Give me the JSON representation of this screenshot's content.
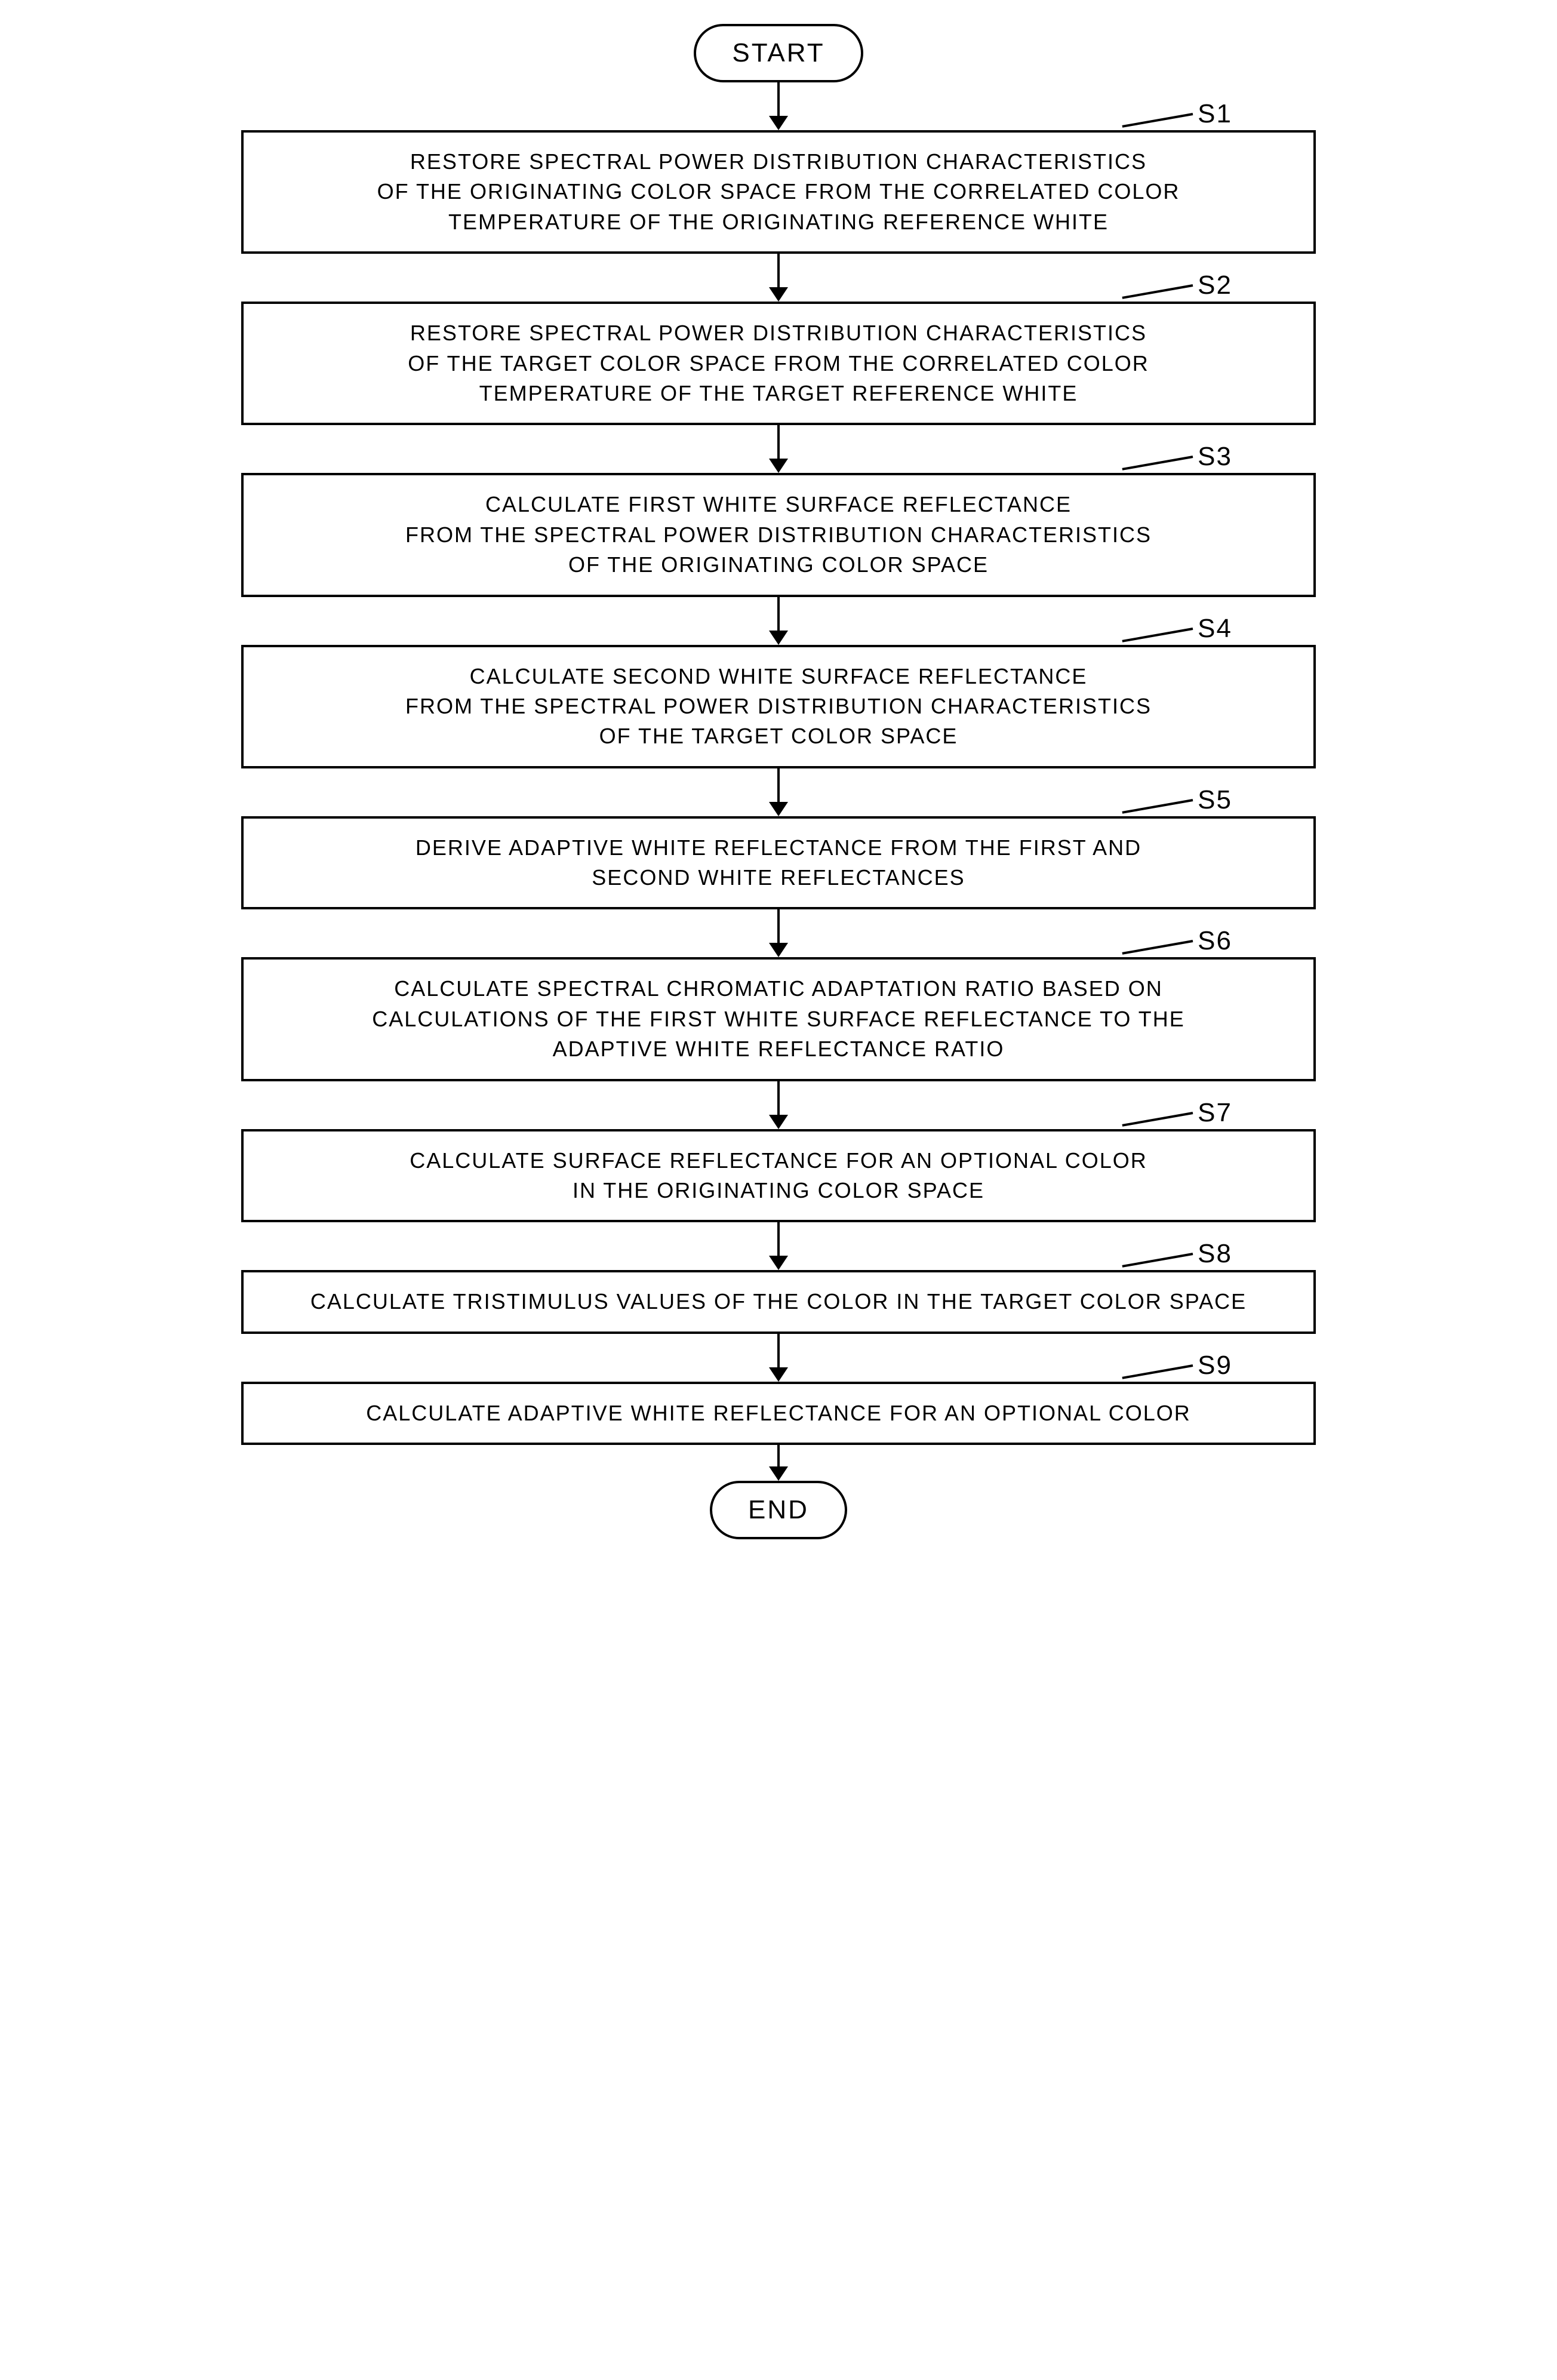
{
  "flowchart": {
    "type": "flowchart",
    "background_color": "#ffffff",
    "border_color": "#000000",
    "border_width": 4,
    "font_family": "Arial",
    "terminal_fontsize": 44,
    "process_fontsize": 36,
    "label_fontsize": 44,
    "start": "START",
    "end": "END",
    "steps": [
      {
        "label": "S1",
        "text": "RESTORE SPECTRAL POWER DISTRIBUTION CHARACTERISTICS\nOF THE ORIGINATING COLOR SPACE FROM THE CORRELATED COLOR\nTEMPERATURE OF THE ORIGINATING REFERENCE WHITE"
      },
      {
        "label": "S2",
        "text": "RESTORE SPECTRAL POWER DISTRIBUTION CHARACTERISTICS\nOF THE TARGET COLOR SPACE FROM THE CORRELATED COLOR\nTEMPERATURE OF THE TARGET REFERENCE WHITE"
      },
      {
        "label": "S3",
        "text": "CALCULATE FIRST WHITE SURFACE REFLECTANCE\nFROM THE SPECTRAL POWER DISTRIBUTION CHARACTERISTICS\nOF THE ORIGINATING COLOR SPACE"
      },
      {
        "label": "S4",
        "text": "CALCULATE SECOND WHITE SURFACE REFLECTANCE\nFROM THE SPECTRAL POWER DISTRIBUTION CHARACTERISTICS\nOF THE TARGET COLOR SPACE"
      },
      {
        "label": "S5",
        "text": "DERIVE ADAPTIVE WHITE REFLECTANCE FROM THE FIRST AND\nSECOND WHITE REFLECTANCES"
      },
      {
        "label": "S6",
        "text": "CALCULATE SPECTRAL CHROMATIC ADAPTATION RATIO BASED ON\nCALCULATIONS OF THE FIRST WHITE SURFACE REFLECTANCE TO THE\nADAPTIVE WHITE REFLECTANCE RATIO"
      },
      {
        "label": "S7",
        "text": "CALCULATE SURFACE REFLECTANCE FOR AN OPTIONAL COLOR\nIN THE ORIGINATING COLOR SPACE"
      },
      {
        "label": "S8",
        "text": "CALCULATE TRISTIMULUS VALUES OF THE COLOR IN THE TARGET COLOR SPACE"
      },
      {
        "label": "S9",
        "text": "CALCULATE ADAPTIVE WHITE REFLECTANCE FOR AN OPTIONAL COLOR"
      }
    ]
  }
}
